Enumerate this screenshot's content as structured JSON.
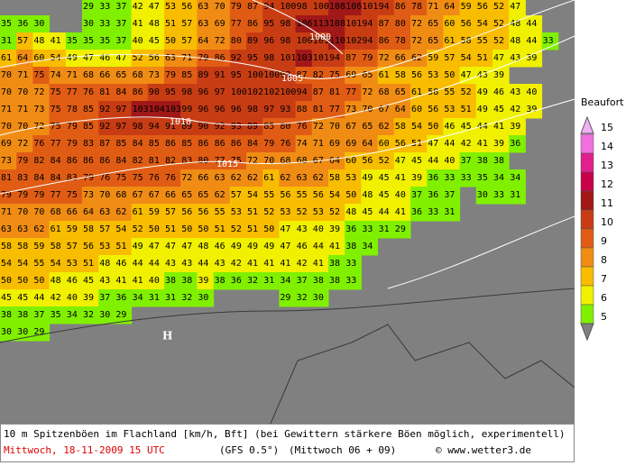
{
  "legend": {
    "title": "Beaufort",
    "items": [
      {
        "label": "15",
        "color": "#f4b0f4"
      },
      {
        "label": "14",
        "color": "#f070e0"
      },
      {
        "label": "13",
        "color": "#e0208c"
      },
      {
        "label": "12",
        "color": "#c8004a"
      },
      {
        "label": "11",
        "color": "#a01818"
      },
      {
        "label": "10",
        "color": "#c83c14"
      },
      {
        "label": "9",
        "color": "#e05c14"
      },
      {
        "label": "8",
        "color": "#f08c14"
      },
      {
        "label": "7",
        "color": "#f8bc00"
      },
      {
        "label": "6",
        "color": "#f0f000"
      },
      {
        "label": "5",
        "color": "#80f000"
      }
    ]
  },
  "isobars": [
    "1000",
    "1005",
    "1010",
    "1015"
  ],
  "high_label": "H",
  "grid": [
    [
      null,
      null,
      null,
      null,
      null,
      29,
      33,
      37,
      42,
      47,
      53,
      56,
      63,
      70,
      79,
      87,
      94,
      100,
      98,
      100,
      108,
      106,
      101,
      94,
      86,
      78,
      71,
      64,
      59,
      56,
      52,
      47
    ],
    [
      35,
      36,
      30,
      null,
      null,
      30,
      33,
      37,
      41,
      48,
      51,
      57,
      63,
      69,
      77,
      86,
      95,
      98,
      106,
      113,
      108,
      101,
      94,
      87,
      80,
      72,
      65,
      60,
      56,
      54,
      52,
      48,
      44
    ],
    [
      31,
      57,
      48,
      41,
      35,
      35,
      35,
      37,
      40,
      45,
      50,
      57,
      64,
      72,
      80,
      89,
      96,
      98,
      100,
      101,
      110,
      102,
      94,
      86,
      78,
      72,
      65,
      61,
      58,
      55,
      52,
      48,
      44,
      33
    ],
    [
      61,
      64,
      60,
      54,
      49,
      47,
      46,
      47,
      52,
      56,
      63,
      71,
      79,
      86,
      92,
      95,
      98,
      101,
      103,
      101,
      94,
      87,
      79,
      72,
      66,
      62,
      59,
      57,
      54,
      51,
      47,
      43,
      39
    ],
    [
      70,
      71,
      75,
      74,
      71,
      68,
      66,
      65,
      68,
      73,
      79,
      85,
      89,
      91,
      95,
      100,
      100,
      93,
      87,
      82,
      75,
      69,
      65,
      61,
      58,
      56,
      53,
      50,
      47,
      43,
      39
    ],
    [
      70,
      70,
      72,
      75,
      77,
      76,
      81,
      84,
      86,
      90,
      95,
      98,
      96,
      97,
      100,
      102,
      102,
      100,
      94,
      87,
      81,
      77,
      72,
      68,
      65,
      61,
      58,
      55,
      52,
      49,
      46,
      43,
      40
    ],
    [
      71,
      71,
      73,
      75,
      78,
      85,
      92,
      97,
      103,
      104,
      103,
      99,
      96,
      96,
      96,
      98,
      97,
      93,
      88,
      81,
      77,
      73,
      70,
      67,
      64,
      60,
      56,
      53,
      51,
      49,
      45,
      42,
      39
    ],
    [
      70,
      70,
      72,
      75,
      79,
      85,
      92,
      97,
      98,
      94,
      91,
      89,
      90,
      92,
      93,
      89,
      85,
      80,
      76,
      72,
      70,
      67,
      65,
      62,
      58,
      54,
      50,
      46,
      45,
      44,
      41,
      39
    ],
    [
      69,
      72,
      76,
      77,
      79,
      83,
      87,
      85,
      84,
      85,
      86,
      85,
      86,
      86,
      86,
      84,
      79,
      76,
      74,
      71,
      69,
      69,
      64,
      60,
      56,
      51,
      47,
      44,
      42,
      41,
      39,
      36
    ],
    [
      73,
      79,
      82,
      84,
      86,
      86,
      86,
      84,
      82,
      81,
      82,
      83,
      80,
      77,
      75,
      72,
      70,
      68,
      68,
      67,
      64,
      60,
      56,
      52,
      47,
      45,
      44,
      40,
      37,
      38,
      38
    ],
    [
      81,
      83,
      84,
      84,
      83,
      79,
      76,
      75,
      75,
      76,
      76,
      72,
      66,
      63,
      62,
      62,
      61,
      62,
      63,
      62,
      58,
      53,
      49,
      45,
      41,
      39,
      36,
      33,
      33,
      35,
      34,
      34
    ],
    [
      79,
      79,
      79,
      77,
      75,
      73,
      70,
      68,
      67,
      67,
      66,
      65,
      65,
      62,
      57,
      54,
      55,
      56,
      55,
      56,
      54,
      50,
      48,
      45,
      40,
      37,
      36,
      37,
      null,
      30,
      33,
      31
    ],
    [
      71,
      70,
      70,
      68,
      66,
      64,
      63,
      62,
      61,
      59,
      57,
      56,
      56,
      55,
      53,
      51,
      52,
      53,
      52,
      53,
      52,
      48,
      45,
      44,
      41,
      36,
      33,
      31
    ],
    [
      63,
      63,
      62,
      61,
      59,
      58,
      57,
      54,
      52,
      50,
      51,
      50,
      50,
      51,
      52,
      51,
      50,
      47,
      43,
      40,
      39,
      36,
      33,
      31,
      29
    ],
    [
      58,
      58,
      59,
      58,
      57,
      56,
      53,
      51,
      49,
      47,
      47,
      47,
      48,
      46,
      49,
      49,
      49,
      47,
      46,
      44,
      41,
      38,
      34
    ],
    [
      54,
      54,
      55,
      54,
      53,
      51,
      48,
      46,
      44,
      44,
      43,
      43,
      44,
      43,
      42,
      41,
      41,
      41,
      42,
      41,
      38,
      33
    ],
    [
      50,
      50,
      50,
      48,
      46,
      45,
      43,
      41,
      41,
      40,
      38,
      38,
      39,
      38,
      36,
      32,
      31,
      34,
      37,
      38,
      38,
      33
    ],
    [
      45,
      45,
      44,
      42,
      40,
      39,
      37,
      36,
      34,
      31,
      31,
      32,
      30,
      null,
      null,
      null,
      null,
      29,
      32,
      30
    ],
    [
      38,
      38,
      37,
      35,
      34,
      32,
      30,
      29
    ],
    [
      30,
      30,
      29
    ]
  ],
  "caption": {
    "line1": "10 m Spitzenböen im Flachland [km/h, Bft] (bei Gewittern stärkere Böen möglich, experimentell)",
    "date": "Mittwoch, 18-11-2009  15 UTC",
    "model": "(GFS 0.5°)",
    "run": "(Mittwoch 06 + 09)",
    "source": "© www.wetter3.de"
  }
}
